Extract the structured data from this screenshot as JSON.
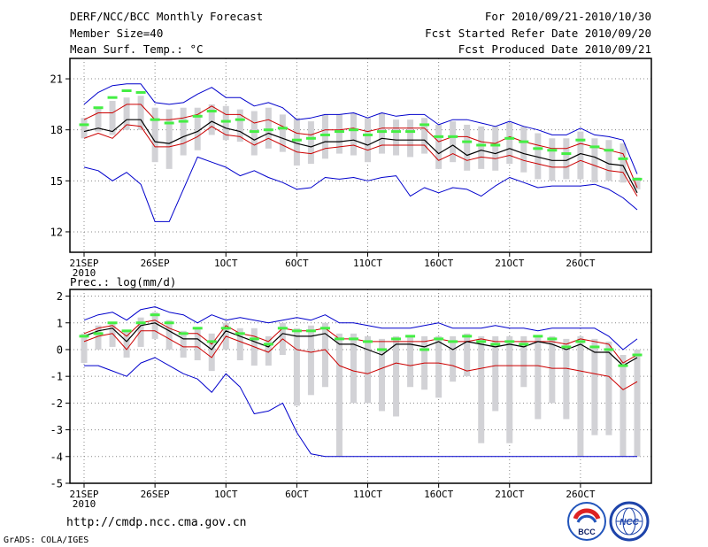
{
  "header": {
    "title": "DERF/NCC/BCC Monthly Forecast",
    "member_size": "Member Size=40",
    "variable": "Mean Surf. Temp.: °C",
    "forecast_period": "For 2010/09/21-2010/10/30",
    "start_date": "Fcst Started Refer Date 2010/09/20",
    "produced_date": "Fcst Produced Date 2010/09/21"
  },
  "footer": {
    "url": "http://cmdp.ncc.cma.gov.cn",
    "grads": "GrADS: COLA/IGES",
    "logo1_text": "BCC",
    "logo2_text": "NCC"
  },
  "colors": {
    "max_min": "#0000cc",
    "spread": "#cc0000",
    "mean": "#000000",
    "box": "#d2d2d6",
    "obs": "#44ee44",
    "grid": "#888888"
  },
  "chart_data": [
    {
      "type": "line",
      "title": "Mean Surf. Temp.: °C",
      "xlabel": "",
      "ylabel": "°C",
      "days": 40,
      "x_start_date": "2010-09-21",
      "x_ticks": [
        "21SEP",
        "26SEP",
        "1OCT",
        "6OCT",
        "11OCT",
        "16OCT",
        "21OCT",
        "26OCT"
      ],
      "x_tick_days": [
        0,
        5,
        10,
        15,
        20,
        25,
        30,
        35
      ],
      "x_sub_label": "2010",
      "ylim": [
        10.8,
        22.2
      ],
      "y_ticks": [
        12,
        15,
        18,
        21
      ],
      "grid": true,
      "series": [
        {
          "name": "max",
          "values": [
            19.5,
            20.2,
            20.6,
            20.7,
            20.7,
            19.6,
            19.5,
            19.6,
            20.1,
            20.5,
            19.9,
            19.9,
            19.4,
            19.6,
            19.3,
            18.6,
            18.7,
            18.9,
            18.9,
            19.0,
            18.7,
            19.0,
            18.8,
            18.9,
            18.9,
            18.3,
            18.6,
            18.6,
            18.4,
            18.2,
            18.5,
            18.2,
            18.0,
            17.7,
            17.7,
            18.1,
            17.7,
            17.6,
            17.4,
            15.4
          ]
        },
        {
          "name": "upper",
          "values": [
            18.6,
            19.0,
            19.0,
            19.5,
            19.5,
            18.6,
            18.6,
            18.7,
            18.9,
            19.4,
            18.9,
            18.9,
            18.4,
            18.6,
            18.2,
            17.8,
            17.7,
            18.0,
            18.0,
            18.1,
            17.9,
            18.1,
            18.1,
            18.1,
            18.1,
            17.3,
            17.6,
            17.6,
            17.3,
            17.2,
            17.6,
            17.3,
            17.1,
            16.9,
            16.9,
            17.2,
            17.0,
            16.8,
            16.6,
            14.6
          ]
        },
        {
          "name": "mean",
          "values": [
            17.9,
            18.1,
            17.9,
            18.6,
            18.6,
            17.3,
            17.2,
            17.6,
            17.9,
            18.5,
            18.1,
            17.9,
            17.4,
            17.8,
            17.5,
            17.2,
            17.0,
            17.3,
            17.3,
            17.4,
            17.1,
            17.5,
            17.4,
            17.4,
            17.4,
            16.6,
            17.1,
            16.5,
            16.8,
            16.6,
            16.9,
            16.6,
            16.4,
            16.2,
            16.2,
            16.6,
            16.4,
            16.0,
            15.9,
            14.3
          ]
        },
        {
          "name": "lower",
          "values": [
            17.5,
            17.8,
            17.5,
            18.3,
            18.2,
            17.0,
            17.0,
            17.2,
            17.6,
            18.2,
            17.7,
            17.6,
            17.1,
            17.5,
            17.1,
            16.7,
            16.6,
            16.9,
            17.0,
            17.1,
            16.8,
            17.1,
            17.1,
            17.1,
            17.1,
            16.2,
            16.6,
            16.2,
            16.4,
            16.3,
            16.5,
            16.2,
            16.0,
            15.8,
            15.8,
            16.2,
            15.9,
            15.6,
            15.5,
            14.1
          ]
        },
        {
          "name": "min",
          "values": [
            15.8,
            15.6,
            15.0,
            15.5,
            14.8,
            12.6,
            12.6,
            14.5,
            16.4,
            16.1,
            15.8,
            15.3,
            15.6,
            15.2,
            14.9,
            14.5,
            14.6,
            15.2,
            15.1,
            15.2,
            15.0,
            15.2,
            15.3,
            14.1,
            14.6,
            14.3,
            14.6,
            14.5,
            14.1,
            14.7,
            15.2,
            14.9,
            14.6,
            14.7,
            14.7,
            14.7,
            14.8,
            14.5,
            14.0,
            13.3
          ]
        },
        {
          "name": "obs",
          "values": [
            18.3,
            19.3,
            19.9,
            20.3,
            20.2,
            18.6,
            18.4,
            18.5,
            18.8,
            19.1,
            18.5,
            18.6,
            17.9,
            18.0,
            18.1,
            17.4,
            17.5,
            17.7,
            17.9,
            18.0,
            17.7,
            17.9,
            17.9,
            17.9,
            18.3,
            17.6,
            17.6,
            17.3,
            17.1,
            17.1,
            17.5,
            17.3,
            16.9,
            16.8,
            16.6,
            17.4,
            17.0,
            16.8,
            16.3,
            15.1
          ]
        },
        {
          "name": "box_high",
          "values": [
            18.7,
            19.3,
            19.7,
            19.9,
            20.0,
            19.3,
            19.2,
            19.3,
            19.3,
            19.5,
            19.4,
            19.2,
            19.1,
            19.3,
            18.9,
            18.7,
            18.5,
            18.9,
            18.9,
            19.0,
            18.7,
            19.0,
            18.6,
            18.6,
            18.7,
            18.3,
            18.5,
            18.3,
            18.2,
            18.2,
            18.4,
            18.2,
            17.8,
            17.5,
            17.5,
            17.9,
            17.5,
            17.4,
            17.2,
            15.2
          ]
        },
        {
          "name": "box_low",
          "values": [
            17.5,
            17.9,
            17.7,
            18.0,
            18.0,
            16.1,
            15.7,
            16.5,
            16.8,
            17.7,
            17.4,
            17.3,
            16.5,
            16.9,
            16.7,
            15.9,
            16.0,
            16.3,
            16.6,
            16.5,
            16.1,
            16.6,
            16.5,
            16.4,
            16.6,
            15.7,
            16.1,
            15.6,
            15.7,
            15.6,
            16.0,
            15.5,
            15.1,
            15.0,
            15.1,
            15.1,
            14.9,
            15.0,
            14.9,
            14.5
          ]
        }
      ]
    },
    {
      "type": "line",
      "title": "Prec.: log(mm/d)",
      "xlabel": "",
      "ylabel": "log(mm/d)",
      "days": 40,
      "x_start_date": "2010-09-21",
      "x_ticks": [
        "21SEP",
        "26SEP",
        "1OCT",
        "6OCT",
        "11OCT",
        "16OCT",
        "21OCT",
        "26OCT"
      ],
      "x_tick_days": [
        0,
        5,
        10,
        15,
        20,
        25,
        30,
        35
      ],
      "x_sub_label": "2010",
      "ylim": [
        -5,
        2.25
      ],
      "y_ticks": [
        -5,
        -4,
        -3,
        -2,
        -1,
        0,
        1,
        2
      ],
      "grid": true,
      "series": [
        {
          "name": "max",
          "values": [
            1.1,
            1.3,
            1.4,
            1.1,
            1.5,
            1.6,
            1.4,
            1.3,
            1.0,
            1.3,
            1.1,
            1.2,
            1.1,
            1.0,
            1.1,
            1.2,
            1.1,
            1.3,
            1.0,
            1.0,
            0.9,
            0.8,
            0.8,
            0.8,
            0.9,
            1.0,
            0.8,
            0.8,
            0.8,
            0.9,
            0.8,
            0.8,
            0.7,
            0.8,
            0.8,
            0.8,
            0.8,
            0.5,
            0.0,
            0.4
          ]
        },
        {
          "name": "upper",
          "values": [
            0.6,
            0.8,
            0.9,
            0.5,
            1.0,
            1.1,
            0.8,
            0.6,
            0.6,
            0.2,
            0.9,
            0.6,
            0.5,
            0.3,
            0.8,
            0.7,
            0.7,
            0.8,
            0.4,
            0.4,
            0.3,
            0.3,
            0.3,
            0.3,
            0.3,
            0.4,
            0.3,
            0.3,
            0.4,
            0.3,
            0.3,
            0.3,
            0.3,
            0.3,
            0.2,
            0.4,
            0.3,
            0.2,
            -0.5,
            -0.2
          ]
        },
        {
          "name": "mean",
          "values": [
            0.5,
            0.7,
            0.8,
            0.3,
            0.9,
            1.0,
            0.7,
            0.4,
            0.4,
            0.0,
            0.7,
            0.5,
            0.3,
            0.1,
            0.6,
            0.5,
            0.5,
            0.6,
            0.2,
            0.2,
            0.0,
            -0.2,
            0.2,
            0.2,
            0.1,
            0.3,
            0.0,
            0.3,
            0.2,
            0.1,
            0.2,
            0.1,
            0.3,
            0.2,
            0.0,
            0.2,
            -0.1,
            -0.1,
            -0.6,
            -0.3
          ]
        },
        {
          "name": "lower",
          "values": [
            0.3,
            0.5,
            0.6,
            0.0,
            0.7,
            0.7,
            0.4,
            0.1,
            0.1,
            -0.3,
            0.5,
            0.3,
            0.1,
            -0.1,
            0.4,
            0.0,
            -0.1,
            0.0,
            -0.6,
            -0.8,
            -0.9,
            -0.7,
            -0.5,
            -0.6,
            -0.5,
            -0.5,
            -0.6,
            -0.8,
            -0.7,
            -0.6,
            -0.6,
            -0.6,
            -0.6,
            -0.7,
            -0.7,
            -0.8,
            -0.9,
            -1.0,
            -1.5,
            -1.2
          ]
        },
        {
          "name": "min",
          "values": [
            -0.6,
            -0.6,
            -0.8,
            -1.0,
            -0.5,
            -0.3,
            -0.6,
            -0.9,
            -1.1,
            -1.6,
            -0.9,
            -1.4,
            -2.4,
            -2.3,
            -2.0,
            -3.1,
            -3.9,
            -4.0,
            -4.0,
            -4.0,
            -4.0,
            -4.0,
            -4.0,
            -4.0,
            -4.0,
            -4.0,
            -4.0,
            -4.0,
            -4.0,
            -4.0,
            -4.0,
            -4.0,
            -4.0,
            -4.0,
            -4.0,
            -4.0,
            -4.0,
            -4.0,
            -4.0,
            -4.0
          ]
        },
        {
          "name": "obs",
          "values": [
            0.5,
            0.6,
            1.0,
            0.7,
            1.0,
            1.3,
            1.0,
            0.6,
            0.8,
            0.3,
            0.8,
            0.6,
            0.4,
            0.2,
            0.8,
            0.7,
            0.7,
            0.8,
            0.4,
            0.4,
            0.3,
            0.0,
            0.4,
            0.5,
            0.0,
            0.4,
            0.3,
            0.5,
            0.3,
            0.2,
            0.3,
            0.2,
            0.5,
            0.4,
            0.1,
            0.3,
            0.1,
            0.0,
            -0.6,
            -0.2
          ]
        },
        {
          "name": "box_high",
          "values": [
            0.6,
            0.9,
            1.0,
            0.7,
            1.2,
            1.4,
            1.1,
            0.7,
            0.8,
            0.6,
            1.0,
            0.8,
            0.8,
            0.5,
            1.0,
            0.8,
            0.9,
            1.0,
            0.6,
            0.6,
            0.5,
            0.4,
            0.5,
            0.5,
            0.5,
            0.5,
            0.5,
            0.6,
            0.5,
            0.5,
            0.5,
            0.5,
            0.5,
            0.5,
            0.4,
            0.5,
            0.4,
            0.3,
            -0.2,
            0.0
          ]
        },
        {
          "name": "box_low",
          "values": [
            -0.5,
            0.0,
            0.1,
            -0.3,
            0.1,
            0.4,
            0.0,
            -0.3,
            -0.4,
            -0.8,
            0.0,
            -0.4,
            -0.6,
            -0.6,
            -0.2,
            -2.1,
            -1.7,
            -1.4,
            -4.0,
            -2.0,
            -2.0,
            -2.3,
            -2.5,
            -1.4,
            -1.5,
            -1.8,
            -1.2,
            -1.0,
            -3.5,
            -2.3,
            -3.5,
            -1.4,
            -2.6,
            -2.0,
            -2.6,
            -4.0,
            -3.2,
            -3.2,
            -4.0,
            -4.0
          ]
        }
      ]
    }
  ]
}
